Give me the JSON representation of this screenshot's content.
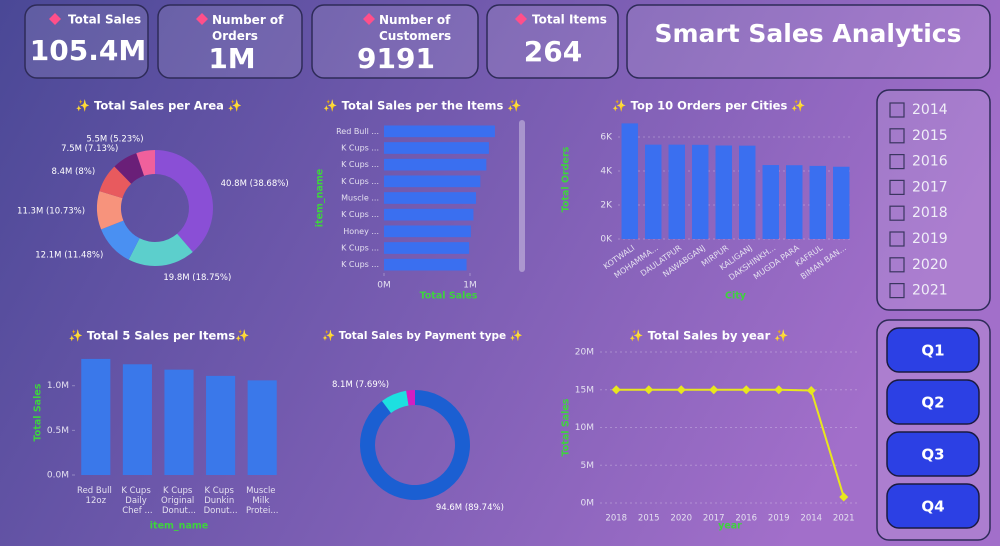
{
  "kpis": [
    {
      "label": "Total Sales",
      "value": "105.4M"
    },
    {
      "label": "Number of Orders",
      "value": "1M"
    },
    {
      "label": "Number of Customers",
      "value": "9191"
    },
    {
      "label": "Total Items",
      "value": "264"
    }
  ],
  "header": {
    "title": "Smart Sales Analytics"
  },
  "year_slicer": {
    "options": [
      "2014",
      "2015",
      "2016",
      "2017",
      "2018",
      "2019",
      "2020",
      "2021"
    ]
  },
  "quarter_buttons": [
    "Q1",
    "Q2",
    "Q3",
    "Q4"
  ],
  "chart_data": [
    {
      "type": "donut",
      "title": "✨ Total Sales per Area ✨",
      "values": [
        40.8,
        19.8,
        12.1,
        11.3,
        8.4,
        7.5,
        5.5
      ],
      "value_labels": [
        "40.8M (38.68%)",
        "19.8M (18.75%)",
        "12.1M (11.48%)",
        "11.3M (10.73%)",
        "8.4M (8%)",
        "7.5M (7.13%)",
        "5.5M (5.23%)"
      ],
      "colors": [
        "#8a4fd6",
        "#5ccfcc",
        "#4a90f2",
        "#f7937c",
        "#e85a5e",
        "#6a1f78",
        "#f0609c"
      ]
    },
    {
      "type": "hbar",
      "title": "✨ Total Sales per the Items ✨",
      "categories": [
        "Red Bull ...",
        "K Cups ...",
        "K Cups ...",
        "K Cups ...",
        "Muscle ...",
        "K Cups ...",
        "Honey ...",
        "K Cups ...",
        "K Cups ..."
      ],
      "values": [
        1290000,
        1220000,
        1190000,
        1120000,
        1070000,
        1040000,
        1010000,
        990000,
        960000
      ],
      "color": "#3a6ff0",
      "xlim": [
        0,
        1500000
      ],
      "xticks": [
        {
          "value": 0,
          "label": "0M"
        },
        {
          "value": 1000000,
          "label": "1M"
        }
      ],
      "x_label": "Total Sales",
      "y_label": "item_name"
    },
    {
      "type": "bar",
      "title": "✨ Top 10 Orders per Cities ✨",
      "categories": [
        "KOTWALI",
        "MOHAMMA...",
        "DAULATPUR",
        "NAWABGANJ",
        "MIRPUR",
        "KALIGANJ",
        "DAKSHINKH...",
        "MUGDA PARA",
        "KAFRUL",
        "BIMAN BAN..."
      ],
      "values": [
        6800,
        5550,
        5550,
        5540,
        5500,
        5490,
        4350,
        4340,
        4300,
        4250
      ],
      "color": "#3a6ff0",
      "ylim": [
        0,
        7000
      ],
      "yticks": [
        {
          "value": 0,
          "label": "0K"
        },
        {
          "value": 2000,
          "label": "2K"
        },
        {
          "value": 4000,
          "label": "4K"
        },
        {
          "value": 6000,
          "label": "6K"
        }
      ],
      "grid": true,
      "x_label": "City",
      "y_label": "Total Orders"
    },
    {
      "type": "bar",
      "title": "✨ Total 5 Sales per Items✨",
      "categories": [
        "Red Bull 12oz",
        "K Cups Daily Chef ...",
        "K Cups Original Donut...",
        "K Cups Dunkin Donut...",
        "Muscle Milk Protei..."
      ],
      "values": [
        1300000,
        1240000,
        1180000,
        1110000,
        1060000
      ],
      "color": "#3a78ea",
      "ylim": [
        0,
        1400000
      ],
      "yticks": [
        {
          "value": 0,
          "label": "0.0M"
        },
        {
          "value": 500000,
          "label": "0.5M"
        },
        {
          "value": 1000000,
          "label": "1.0M"
        }
      ],
      "grid": false,
      "x_label": "item_name",
      "y_label": "Total Sales"
    },
    {
      "type": "donut",
      "title": "✨ Total Sales by Payment type ✨",
      "values": [
        94.6,
        8.1,
        2.7
      ],
      "value_labels": [
        "94.6M (89.74%)",
        "8.1M (7.69%)",
        null
      ],
      "colors": [
        "#1b5fd2",
        "#1de0e0",
        "#d21fc2"
      ]
    },
    {
      "type": "line",
      "title": "✨ Total Sales by year ✨",
      "categories": [
        "2018",
        "2015",
        "2020",
        "2017",
        "2016",
        "2019",
        "2014",
        "2021"
      ],
      "values": [
        15000000,
        15000000,
        15000000,
        15000000,
        15000000,
        15000000,
        14900000,
        800000
      ],
      "color": "#e8e61e",
      "ylim": [
        0,
        20000000
      ],
      "yticks": [
        {
          "value": 0,
          "label": "0M"
        },
        {
          "value": 5000000,
          "label": "5M"
        },
        {
          "value": 10000000,
          "label": "10M"
        },
        {
          "value": 15000000,
          "label": "15M"
        },
        {
          "value": 20000000,
          "label": "20M"
        }
      ],
      "grid": true,
      "x_label": "year",
      "y_label": "Total Sales"
    }
  ]
}
